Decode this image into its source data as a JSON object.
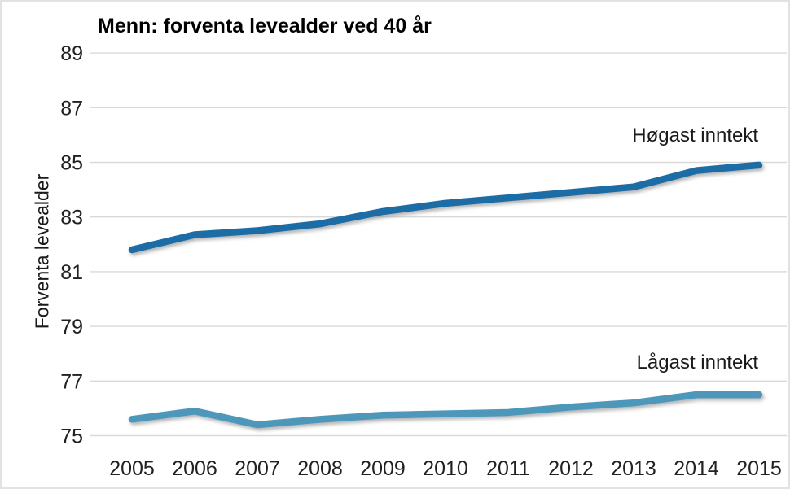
{
  "chart_data": {
    "type": "line",
    "title": "Menn: forventa levealder ved 40 år",
    "ylabel": "Forventa levealder",
    "xlabel": "",
    "x": [
      2005,
      2006,
      2007,
      2008,
      2009,
      2010,
      2011,
      2012,
      2013,
      2014,
      2015
    ],
    "ylim": [
      75,
      89
    ],
    "yticks": [
      89,
      87,
      85,
      83,
      81,
      79,
      77,
      75
    ],
    "grid": true,
    "legend_position": "inline-annotations-right",
    "colors": {
      "gridline": "#d9d9d9",
      "frame_border": "#e2e2e2",
      "text": "#212121"
    },
    "series": [
      {
        "name": "Høgast inntekt",
        "color": "#1b6ca6",
        "values": [
          81.8,
          82.35,
          82.5,
          82.75,
          83.2,
          83.5,
          83.7,
          83.9,
          84.1,
          84.7,
          84.9
        ]
      },
      {
        "name": "Lågast inntekt",
        "color": "#4e97ba",
        "values": [
          75.6,
          75.9,
          75.4,
          75.6,
          75.75,
          75.8,
          75.85,
          76.05,
          76.2,
          76.5,
          76.5
        ]
      }
    ]
  }
}
